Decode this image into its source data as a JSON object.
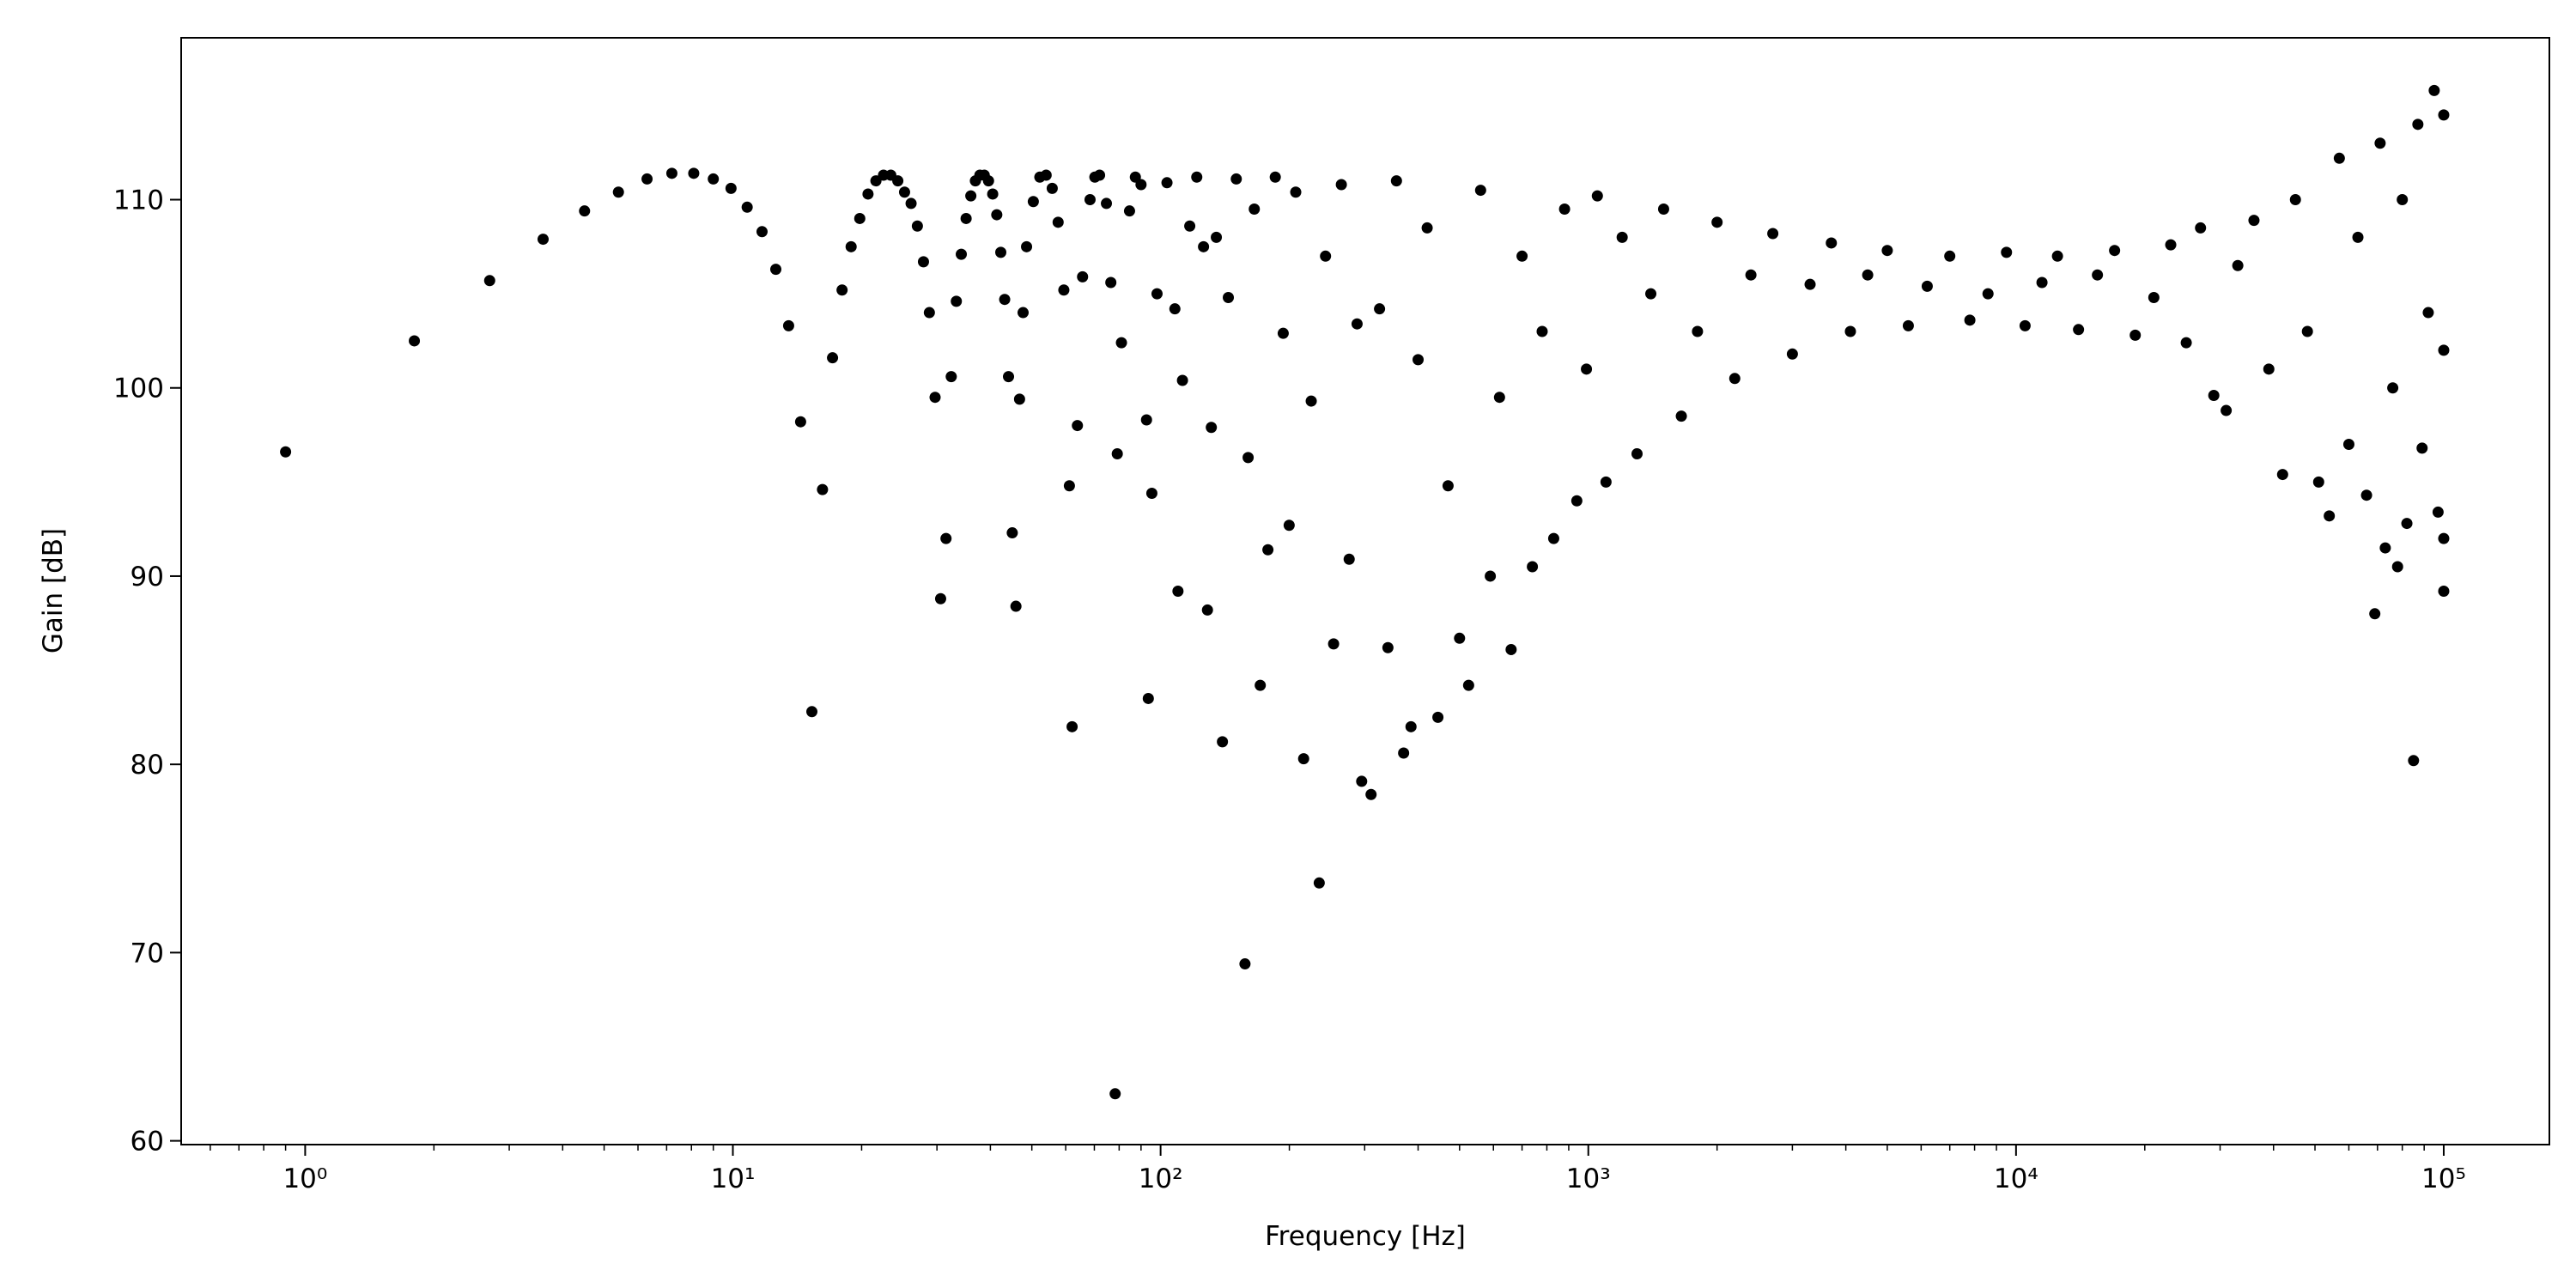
{
  "chart_data": {
    "type": "scatter",
    "x_label": "Frequency [Hz]",
    "y_label": "Gain [dB]",
    "xscale": "log",
    "color": "#000000",
    "xlim": [
      0.513,
      176600
    ],
    "ylim": [
      59.8,
      118.6
    ],
    "xticks": [
      {
        "value": 1,
        "label": "10⁰"
      },
      {
        "value": 10,
        "label": "10¹"
      },
      {
        "value": 100,
        "label": "10²"
      },
      {
        "value": 1000,
        "label": "10³"
      },
      {
        "value": 10000,
        "label": "10⁴"
      },
      {
        "value": 100000,
        "label": "10⁵"
      }
    ],
    "xminorticks": [
      0.6,
      0.7,
      0.8,
      0.9,
      2,
      3,
      4,
      5,
      6,
      7,
      8,
      9,
      20,
      30,
      40,
      50,
      60,
      70,
      80,
      90,
      200,
      300,
      400,
      500,
      600,
      700,
      800,
      900,
      2000,
      3000,
      4000,
      5000,
      6000,
      7000,
      8000,
      9000,
      20000,
      30000,
      40000,
      50000,
      60000,
      70000,
      80000,
      90000
    ],
    "yticks": [
      60,
      70,
      80,
      90,
      100,
      110
    ],
    "x": [
      0.9,
      1.8,
      2.7,
      3.6,
      4.5,
      5.4,
      6.3,
      7.2,
      8.1,
      9.0,
      9.9,
      10.8,
      11.7,
      12.6,
      13.5,
      14.4,
      15.3,
      16.2,
      17.1,
      18.0,
      18.9,
      19.8,
      20.7,
      21.6,
      22.5,
      23.4,
      24.3,
      25.2,
      26.1,
      27.0,
      27.9,
      28.8,
      29.7,
      30.6,
      31.5,
      32.4,
      33.3,
      34.2,
      35.1,
      36.0,
      36.9,
      37.8,
      38.7,
      39.6,
      40.5,
      41.4,
      42.3,
      43.2,
      44.1,
      45.0,
      45.9,
      46.8,
      47.7,
      48.6,
      50.4,
      52.2,
      54,
      55.8,
      57.6,
      59.4,
      61.2,
      62.1,
      63.9,
      65.7,
      68.4,
      70.2,
      72,
      74.7,
      76.5,
      78.3,
      79.2,
      81,
      84.6,
      87.3,
      90,
      92.7,
      93.6,
      95.4,
      98.1,
      103.5,
      108,
      109.8,
      112.5,
      117,
      121.5,
      126,
      128.7,
      131.4,
      135,
      139.5,
      144,
      150.3,
      157.5,
      160.2,
      165.6,
      171,
      178.2,
      185.4,
      193.5,
      199.8,
      207,
      216,
      225,
      234.9,
      243,
      253.8,
      264.6,
      276,
      288,
      295.2,
      310.5,
      325,
      340,
      356,
      370,
      385,
      400,
      420,
      445,
      470,
      500,
      525,
      560,
      590,
      620,
      660,
      700,
      740,
      780,
      830,
      880,
      940,
      990,
      1050,
      1100,
      1200,
      1300,
      1400,
      1500,
      1650,
      1800,
      2000,
      2200,
      2400,
      2700,
      3000,
      3300,
      3700,
      4100,
      4500,
      5000,
      5600,
      6200,
      7000,
      7800,
      8600,
      9500,
      10500,
      11500,
      12500,
      14000,
      15500,
      17000,
      19000,
      21000,
      23000,
      25000,
      27000,
      29000,
      31000,
      33000,
      36000,
      39000,
      42000,
      45000,
      48000,
      51000,
      54000,
      57000,
      60000,
      63000,
      66000,
      69000,
      71000,
      73000,
      76000,
      78000,
      80000,
      82000,
      85000,
      87000,
      89000,
      92000,
      95000,
      97000,
      100000,
      100000,
      100000,
      100000
    ],
    "values": [
      96.6,
      102.5,
      105.7,
      107.9,
      109.4,
      110.4,
      111.1,
      111.4,
      111.4,
      111.1,
      110.6,
      109.6,
      108.3,
      106.3,
      103.3,
      98.2,
      82.8,
      94.6,
      101.6,
      105.2,
      107.5,
      109.0,
      110.3,
      111.0,
      111.3,
      111.3,
      111.0,
      110.4,
      109.8,
      108.6,
      106.7,
      104.0,
      99.5,
      88.8,
      92.0,
      100.6,
      104.6,
      107.1,
      109.0,
      110.2,
      111.0,
      111.3,
      111.3,
      111.0,
      110.3,
      109.2,
      107.2,
      104.7,
      100.6,
      92.3,
      88.4,
      99.4,
      104.0,
      107.5,
      109.9,
      111.2,
      111.3,
      110.6,
      108.8,
      105.2,
      94.8,
      82.0,
      98.0,
      105.9,
      110.0,
      111.2,
      111.3,
      109.8,
      105.6,
      62.5,
      96.5,
      102.4,
      109.4,
      111.2,
      110.8,
      98.3,
      83.5,
      94.4,
      105.0,
      110.9,
      104.2,
      89.2,
      100.4,
      108.6,
      111.2,
      107.5,
      88.2,
      97.9,
      108.0,
      81.2,
      104.8,
      111.1,
      69.4,
      96.3,
      109.5,
      84.2,
      91.4,
      111.2,
      102.9,
      92.7,
      110.4,
      80.3,
      99.3,
      73.7,
      107.0,
      86.4,
      110.8,
      90.9,
      103.4,
      79.1,
      78.4,
      104.2,
      86.2,
      111.0,
      80.6,
      82.0,
      101.5,
      108.5,
      82.5,
      94.8,
      86.7,
      84.2,
      110.5,
      90.0,
      99.5,
      86.1,
      107.0,
      90.5,
      103.0,
      92.0,
      109.5,
      94.0,
      101.0,
      110.2,
      95.0,
      108.0,
      96.5,
      105.0,
      109.5,
      98.5,
      103.0,
      108.8,
      100.5,
      106.0,
      108.2,
      101.8,
      105.5,
      107.7,
      103.0,
      106.0,
      107.3,
      103.3,
      105.4,
      107.0,
      103.6,
      105.0,
      107.2,
      103.3,
      105.6,
      107.0,
      103.1,
      106.0,
      107.3,
      102.8,
      104.8,
      107.6,
      102.4,
      108.5,
      99.6,
      98.8,
      106.5,
      108.9,
      101.0,
      95.4,
      110.0,
      103.0,
      95.0,
      93.2,
      112.2,
      97.0,
      108.0,
      94.3,
      88.0,
      113.0,
      91.5,
      100.0,
      90.5,
      110.0,
      92.8,
      80.2,
      114.0,
      96.8,
      104.0,
      115.8,
      93.4,
      89.2,
      92.0,
      114.5,
      102.0
    ]
  }
}
